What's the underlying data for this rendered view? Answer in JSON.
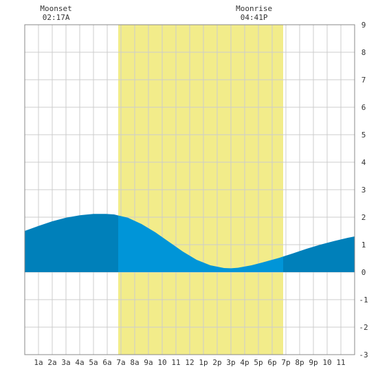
{
  "chart_data": {
    "type": "area",
    "title": "",
    "xlabel": "",
    "ylabel": "",
    "x_tick_labels": [
      "1a",
      "2a",
      "3a",
      "4a",
      "5a",
      "6a",
      "7a",
      "8a",
      "9a",
      "10",
      "11",
      "12",
      "1p",
      "2p",
      "3p",
      "4p",
      "5p",
      "6p",
      "7p",
      "8p",
      "9p",
      "10",
      "11"
    ],
    "xlim": [
      0,
      24
    ],
    "ylim": [
      -3,
      9
    ],
    "y_ticks": [
      -3,
      -2,
      -1,
      0,
      1,
      2,
      3,
      4,
      5,
      6,
      7,
      8,
      9
    ],
    "grid": true,
    "daylight": {
      "start": 6.8,
      "end": 18.8
    },
    "moon_events": [
      {
        "label": "Moonset",
        "time": "02:17A",
        "hour": 2.28
      },
      {
        "label": "Moonrise",
        "time": "04:41P",
        "hour": 16.68
      }
    ],
    "series": [
      {
        "x": [
          0,
          1,
          2,
          3,
          4,
          5,
          5.9,
          6.5,
          7.5,
          8.5,
          9.5,
          10.5,
          11.5,
          12.5,
          13.5,
          14.5,
          15,
          15.5,
          16.5,
          17.5,
          18.5,
          19.5,
          20.5,
          21.5,
          22.5,
          23.5,
          24
        ],
        "values": [
          1.5,
          1.68,
          1.85,
          1.98,
          2.07,
          2.12,
          2.12,
          2.1,
          1.98,
          1.75,
          1.45,
          1.1,
          0.75,
          0.45,
          0.25,
          0.15,
          0.14,
          0.16,
          0.25,
          0.38,
          0.52,
          0.68,
          0.85,
          1.0,
          1.13,
          1.25,
          1.3
        ]
      }
    ],
    "colors": {
      "daylight": "#f2ec8a",
      "tide_day": "#0095d8",
      "tide_night": "#0080ba",
      "grid": "#cccccc",
      "frame": "#888888"
    }
  }
}
